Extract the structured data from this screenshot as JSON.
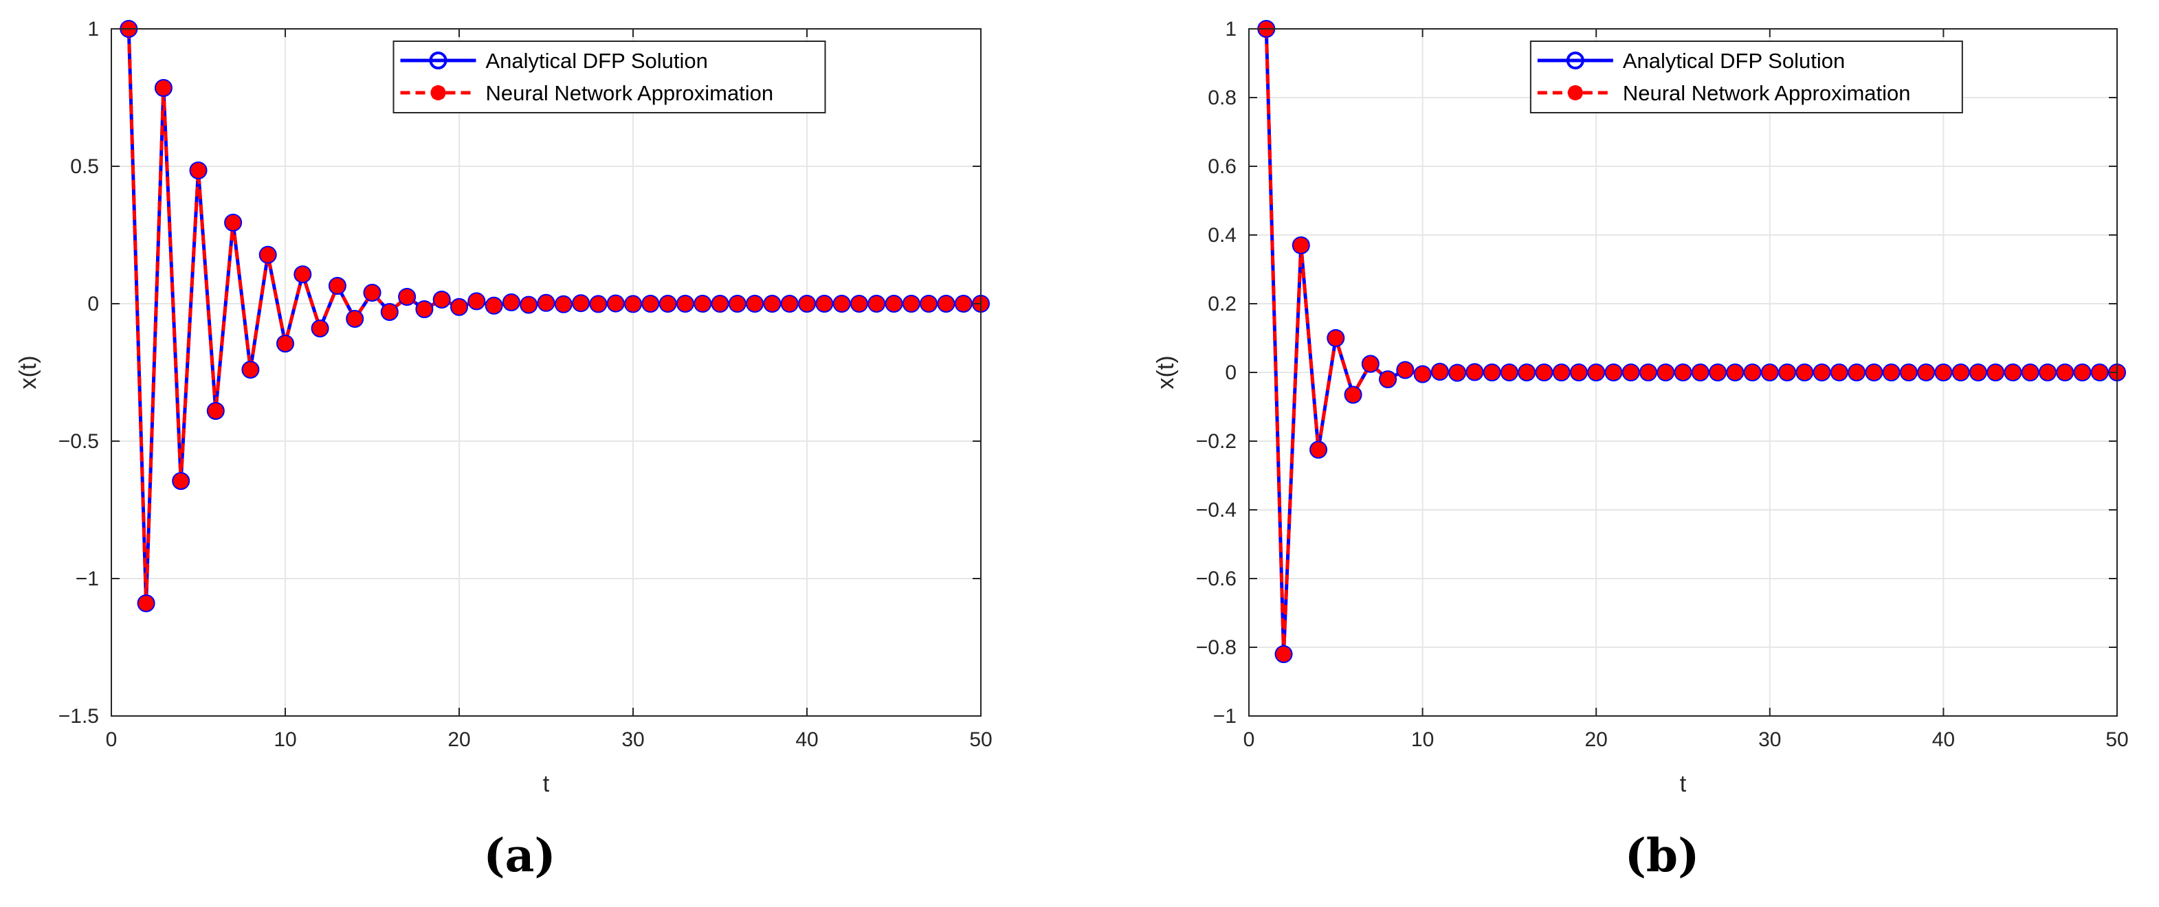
{
  "colors": {
    "analytical": "#0000ff",
    "neural": "#ff0000",
    "grid": "#e6e6e6",
    "axis": "#262626"
  },
  "chart_data": [
    {
      "type": "line",
      "caption": "(a)",
      "xlabel": "t",
      "ylabel": "x(t)",
      "xlim": [
        0,
        50
      ],
      "ylim": [
        -1.5,
        1
      ],
      "xticks": [
        0,
        10,
        20,
        30,
        40,
        50
      ],
      "xtick_labels": [
        "0",
        "10",
        "20",
        "30",
        "40",
        "50"
      ],
      "yticks": [
        -1.5,
        -1,
        -0.5,
        0,
        0.5,
        1
      ],
      "ytick_labels": [
        "−1.5",
        "−1",
        "−0.5",
        "0",
        "0.5",
        "1"
      ],
      "grid": true,
      "legend_position": "top-center",
      "x": [
        1,
        2,
        3,
        4,
        5,
        6,
        7,
        8,
        9,
        10,
        11,
        12,
        13,
        14,
        15,
        16,
        17,
        18,
        19,
        20,
        21,
        22,
        23,
        24,
        25,
        26,
        27,
        28,
        29,
        30,
        31,
        32,
        33,
        34,
        35,
        36,
        37,
        38,
        39,
        40,
        41,
        42,
        43,
        44,
        45,
        46,
        47,
        48,
        49,
        50
      ],
      "series": [
        {
          "name": "Analytical DFP Solution",
          "line_style": "solid",
          "marker": "circle",
          "values": [
            1.0,
            -1.09,
            0.785,
            -0.645,
            0.485,
            -0.39,
            0.295,
            -0.24,
            0.178,
            -0.145,
            0.107,
            -0.09,
            0.065,
            -0.055,
            0.04,
            -0.03,
            0.025,
            -0.02,
            0.015,
            -0.012,
            0.009,
            -0.007,
            0.005,
            -0.004,
            0.003,
            -0.002,
            0.002,
            -0.001,
            0.001,
            -0.001,
            0.0,
            0.0,
            0.0,
            0.0,
            0.0,
            0.0,
            0.0,
            0.0,
            0.0,
            0.0,
            0.0,
            0.0,
            0.0,
            0.0,
            0.0,
            0.0,
            0.0,
            0.0,
            0.0,
            0.0
          ]
        },
        {
          "name": "Neural Network Approximation",
          "line_style": "dashed",
          "marker": "asterisk",
          "values": [
            1.0,
            -1.09,
            0.785,
            -0.645,
            0.485,
            -0.39,
            0.295,
            -0.24,
            0.178,
            -0.145,
            0.107,
            -0.09,
            0.065,
            -0.055,
            0.04,
            -0.03,
            0.025,
            -0.02,
            0.015,
            -0.012,
            0.009,
            -0.007,
            0.005,
            -0.004,
            0.003,
            -0.002,
            0.002,
            -0.001,
            0.001,
            -0.001,
            0.0,
            0.0,
            0.0,
            0.0,
            0.0,
            0.0,
            0.0,
            0.0,
            0.0,
            0.0,
            0.0,
            0.0,
            0.0,
            0.0,
            0.0,
            0.0,
            0.0,
            0.0,
            0.0,
            0.0
          ]
        }
      ]
    },
    {
      "type": "line",
      "caption": "(b)",
      "xlabel": "t",
      "ylabel": "x(t)",
      "xlim": [
        0,
        50
      ],
      "ylim": [
        -1,
        1
      ],
      "xticks": [
        0,
        10,
        20,
        30,
        40,
        50
      ],
      "xtick_labels": [
        "0",
        "10",
        "20",
        "30",
        "40",
        "50"
      ],
      "yticks": [
        -1,
        -0.8,
        -0.6,
        -0.4,
        -0.2,
        0,
        0.2,
        0.4,
        0.6,
        0.8,
        1
      ],
      "ytick_labels": [
        "−1",
        "−0.8",
        "−0.6",
        "−0.4",
        "−0.2",
        "0",
        "0.2",
        "0.4",
        "0.6",
        "0.8",
        "1"
      ],
      "grid": true,
      "legend_position": "top-center",
      "x": [
        1,
        2,
        3,
        4,
        5,
        6,
        7,
        8,
        9,
        10,
        11,
        12,
        13,
        14,
        15,
        16,
        17,
        18,
        19,
        20,
        21,
        22,
        23,
        24,
        25,
        26,
        27,
        28,
        29,
        30,
        31,
        32,
        33,
        34,
        35,
        36,
        37,
        38,
        39,
        40,
        41,
        42,
        43,
        44,
        45,
        46,
        47,
        48,
        49,
        50
      ],
      "series": [
        {
          "name": "Analytical DFP Solution",
          "line_style": "solid",
          "marker": "circle",
          "values": [
            1.0,
            -0.82,
            0.37,
            -0.225,
            0.1,
            -0.065,
            0.025,
            -0.02,
            0.007,
            -0.005,
            0.002,
            -0.001,
            0.001,
            0.0,
            0.0,
            0.0,
            0.0,
            0.0,
            0.0,
            0.0,
            0.0,
            0.0,
            0.0,
            0.0,
            0.0,
            0.0,
            0.0,
            0.0,
            0.0,
            0.0,
            0.0,
            0.0,
            0.0,
            0.0,
            0.0,
            0.0,
            0.0,
            0.0,
            0.0,
            0.0,
            0.0,
            0.0,
            0.0,
            0.0,
            0.0,
            0.0,
            0.0,
            0.0,
            0.0,
            0.0
          ]
        },
        {
          "name": "Neural Network Approximation",
          "line_style": "dashed",
          "marker": "asterisk",
          "values": [
            1.0,
            -0.82,
            0.37,
            -0.225,
            0.1,
            -0.065,
            0.025,
            -0.02,
            0.007,
            -0.005,
            0.002,
            -0.001,
            0.001,
            0.0,
            0.0,
            0.0,
            0.0,
            0.0,
            0.0,
            0.0,
            0.0,
            0.0,
            0.0,
            0.0,
            0.0,
            0.0,
            0.0,
            0.0,
            0.0,
            0.0,
            0.0,
            0.0,
            0.0,
            0.0,
            0.0,
            0.0,
            0.0,
            0.0,
            0.0,
            0.0,
            0.0,
            0.0,
            0.0,
            0.0,
            0.0,
            0.0,
            0.0,
            0.0,
            0.0,
            0.0
          ]
        }
      ]
    }
  ]
}
